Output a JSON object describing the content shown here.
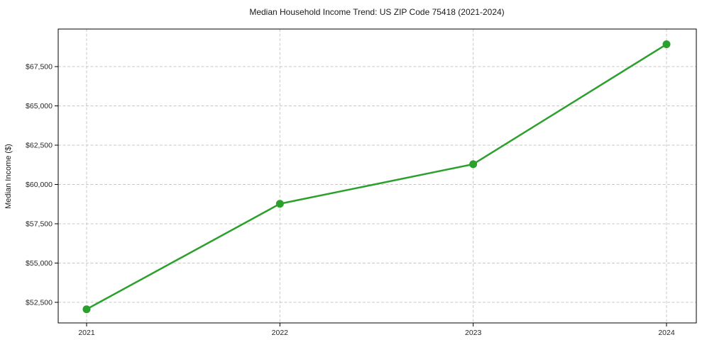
{
  "figure": {
    "title": "Median Household Income Trend: US ZIP Code 75418 (2021-2024)"
  },
  "chart_data": {
    "type": "line",
    "title": "Median Household Income Trend: US ZIP Code 75418 (2021-2024)",
    "xlabel": "",
    "ylabel": "Median Income ($)",
    "categories": [
      "2021",
      "2022",
      "2023",
      "2024"
    ],
    "series": [
      {
        "name": "Median Household Income",
        "values": [
          52060,
          58770,
          61290,
          68920
        ]
      }
    ],
    "ylim": [
      51190,
      69890
    ],
    "yticks": [
      52500,
      55000,
      57500,
      60000,
      62500,
      65000,
      67500
    ],
    "ytick_labels": [
      "$52,500",
      "$55,000",
      "$57,500",
      "$60,000",
      "$62,500",
      "$65,000",
      "$67,500"
    ],
    "grid": true,
    "grid_style": "dashed",
    "grid_color": "#c9c9c9",
    "legend": "none",
    "line_color": "#2ca02c",
    "marker": "circle",
    "marker_size": 11,
    "background_color": "#ffffff"
  }
}
